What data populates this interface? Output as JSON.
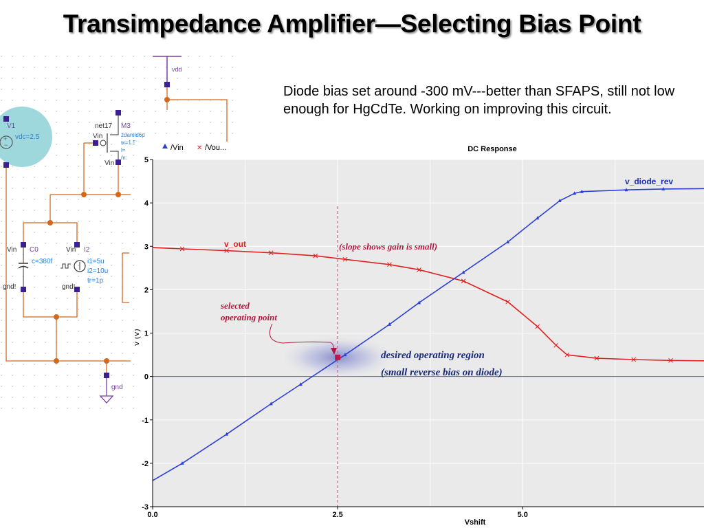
{
  "slide": {
    "title": "Transimpedance Amplifier—Selecting Bias Point",
    "note": "Diode bias set around -300 mV---better than SFAPS, still not low enough for HgCdTe. Working on improving this circuit."
  },
  "schematic": {
    "labels": {
      "vdd": "vdd",
      "v1": "V1",
      "vdc": "vdc=2.5",
      "net17": "net17",
      "m3": "M3",
      "vin_gate": "Vin",
      "vin_source": "Vin",
      "m3_model": "zdamld6p",
      "m3_w": "w=1.5u",
      "m3_l": "l=",
      "m3_m": "m:",
      "vin_c0": "Vin",
      "c0": "C0",
      "c0_val": "c=380f",
      "gnd_c0": "gnd!",
      "vin_i2": "Vin",
      "i2": "I2",
      "i1_val": "i1=5u",
      "i2_val": "i2=10u",
      "tr_val": "tr=1p",
      "gnd_i2": "gnd!",
      "gnd": "gnd"
    },
    "legend": [
      {
        "marker": "triangle",
        "label": "/Vin",
        "color": "#2a3fd6"
      },
      {
        "marker": "x",
        "label": "/Vou...",
        "color": "#e02020"
      }
    ]
  },
  "plot": {
    "title": "DC Response",
    "xlabel": "Vshift",
    "ylabel": "V (V)",
    "annotations": {
      "v_out": "v_out",
      "v_diode_rev": "v_diode_rev",
      "slope": "(slope shows gain is small)",
      "selected": [
        "selected",
        "operating point"
      ],
      "desired": "desired operating region",
      "small_reverse": "(small reverse bias on diode)"
    },
    "colors": {
      "v_out": "#e02020",
      "v_diode_rev": "#2a3fd6",
      "background": "#eaeaea",
      "grid": "#ffffff",
      "marker": "#c8144c"
    }
  },
  "chart_data": {
    "type": "line",
    "title": "DC Response",
    "xlabel": "Vshift",
    "ylabel": "V (V)",
    "xlim": [
      0,
      7.5
    ],
    "ylim": [
      -3,
      5
    ],
    "xticks": [
      0.0,
      2.5,
      5.0
    ],
    "yticks": [
      -3,
      -2,
      -1,
      0,
      1,
      2,
      3,
      4,
      5
    ],
    "grid": true,
    "series": [
      {
        "name": "v_out",
        "color": "#e02020",
        "x": [
          0,
          0.4,
          1.0,
          1.6,
          2.2,
          2.6,
          3.2,
          3.6,
          4.2,
          4.8,
          5.2,
          5.45,
          5.6,
          6.0,
          6.5,
          7.0,
          7.5
        ],
        "y": [
          2.97,
          2.94,
          2.9,
          2.85,
          2.78,
          2.7,
          2.58,
          2.46,
          2.2,
          1.72,
          1.15,
          0.72,
          0.5,
          0.42,
          0.39,
          0.37,
          0.36
        ]
      },
      {
        "name": "v_diode_rev",
        "color": "#2a3fd6",
        "x": [
          0,
          0.4,
          1.0,
          1.6,
          2.0,
          2.6,
          3.2,
          3.6,
          4.2,
          4.8,
          5.2,
          5.5,
          5.7,
          5.8,
          6.4,
          6.9,
          7.5
        ],
        "y": [
          -2.4,
          -2.0,
          -1.33,
          -0.63,
          -0.18,
          0.5,
          1.2,
          1.7,
          2.4,
          3.1,
          3.65,
          4.05,
          4.22,
          4.26,
          4.3,
          4.32,
          4.33
        ]
      }
    ],
    "selected_point": {
      "x": 2.5,
      "y": 0.44
    }
  }
}
